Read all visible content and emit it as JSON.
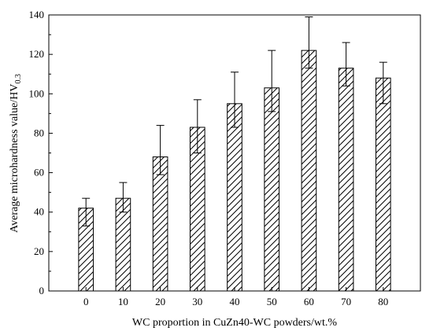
{
  "chart_data": {
    "type": "bar",
    "categories": [
      "0",
      "10",
      "20",
      "30",
      "40",
      "50",
      "60",
      "70",
      "80"
    ],
    "values": [
      42,
      47,
      68,
      83,
      95,
      103,
      122,
      113,
      108
    ],
    "error_upper": [
      5,
      8,
      16,
      14,
      16,
      19,
      17,
      13,
      8
    ],
    "error_lower": [
      9,
      7,
      9,
      13,
      12,
      12,
      9,
      9,
      13
    ],
    "xlabel": "WC proportion in CuZn40-WC powders/wt.%",
    "ylabel_main": "Average microhardness value/HV",
    "ylabel_sub": "0.3",
    "ylim": [
      0,
      140
    ],
    "yticks": [
      0,
      20,
      40,
      60,
      80,
      100,
      120,
      140
    ],
    "bar_fill": "diagonal-hatch",
    "colors": {
      "bar_stroke": "#000000",
      "hatch": "#000000",
      "background": "#ffffff"
    },
    "grid": false
  }
}
